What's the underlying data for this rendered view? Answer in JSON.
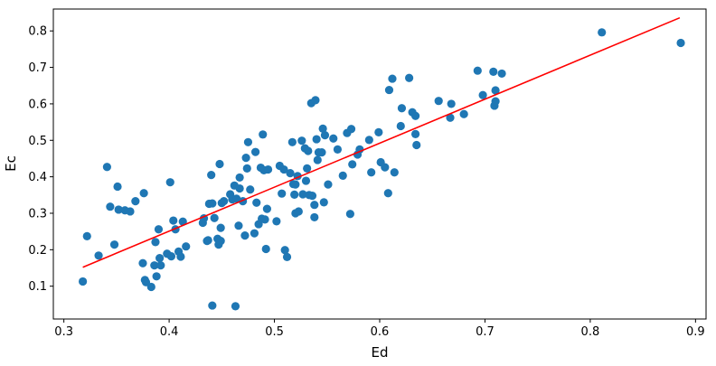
{
  "chart_data": {
    "type": "scatter",
    "title": "",
    "xlabel": "Ed",
    "ylabel": "Ec",
    "xlim": [
      0.29,
      0.91
    ],
    "ylim": [
      0.01,
      0.86
    ],
    "xticks": [
      {
        "value": 0.3,
        "label": "0.3"
      },
      {
        "value": 0.4,
        "label": "0.4"
      },
      {
        "value": 0.5,
        "label": "0.5"
      },
      {
        "value": 0.6,
        "label": "0.6"
      },
      {
        "value": 0.7,
        "label": "0.7"
      },
      {
        "value": 0.8,
        "label": "0.8"
      },
      {
        "value": 0.9,
        "label": "0.9"
      }
    ],
    "yticks": [
      {
        "value": 0.1,
        "label": "0.1"
      },
      {
        "value": 0.2,
        "label": "0.2"
      },
      {
        "value": 0.3,
        "label": "0.3"
      },
      {
        "value": 0.4,
        "label": "0.4"
      },
      {
        "value": 0.5,
        "label": "0.5"
      },
      {
        "value": 0.6,
        "label": "0.6"
      },
      {
        "value": 0.7,
        "label": "0.7"
      },
      {
        "value": 0.8,
        "label": "0.8"
      }
    ],
    "grid": false,
    "colors": {
      "points": "#1f77b4",
      "fit_line": "#ff0000"
    },
    "points": [
      [
        0.318,
        0.113
      ],
      [
        0.322,
        0.237
      ],
      [
        0.333,
        0.184
      ],
      [
        0.341,
        0.427
      ],
      [
        0.344,
        0.318
      ],
      [
        0.348,
        0.214
      ],
      [
        0.351,
        0.373
      ],
      [
        0.352,
        0.31
      ],
      [
        0.358,
        0.308
      ],
      [
        0.363,
        0.305
      ],
      [
        0.368,
        0.333
      ],
      [
        0.375,
        0.163
      ],
      [
        0.376,
        0.355
      ],
      [
        0.377,
        0.117
      ],
      [
        0.378,
        0.111
      ],
      [
        0.383,
        0.098
      ],
      [
        0.386,
        0.157
      ],
      [
        0.387,
        0.221
      ],
      [
        0.388,
        0.127
      ],
      [
        0.39,
        0.256
      ],
      [
        0.391,
        0.177
      ],
      [
        0.392,
        0.157
      ],
      [
        0.398,
        0.189
      ],
      [
        0.401,
        0.385
      ],
      [
        0.402,
        0.182
      ],
      [
        0.404,
        0.28
      ],
      [
        0.406,
        0.256
      ],
      [
        0.409,
        0.195
      ],
      [
        0.411,
        0.181
      ],
      [
        0.413,
        0.277
      ],
      [
        0.416,
        0.209
      ],
      [
        0.432,
        0.274
      ],
      [
        0.433,
        0.286
      ],
      [
        0.436,
        0.224
      ],
      [
        0.437,
        0.226
      ],
      [
        0.438,
        0.326
      ],
      [
        0.44,
        0.405
      ],
      [
        0.441,
        0.047
      ],
      [
        0.441,
        0.327
      ],
      [
        0.443,
        0.287
      ],
      [
        0.446,
        0.23
      ],
      [
        0.447,
        0.214
      ],
      [
        0.448,
        0.435
      ],
      [
        0.449,
        0.224
      ],
      [
        0.449,
        0.26
      ],
      [
        0.45,
        0.328
      ],
      [
        0.452,
        0.333
      ],
      [
        0.458,
        0.352
      ],
      [
        0.46,
        0.338
      ],
      [
        0.462,
        0.376
      ],
      [
        0.463,
        0.045
      ],
      [
        0.464,
        0.34
      ],
      [
        0.466,
        0.266
      ],
      [
        0.467,
        0.368
      ],
      [
        0.467,
        0.398
      ],
      [
        0.47,
        0.333
      ],
      [
        0.472,
        0.239
      ],
      [
        0.473,
        0.452
      ],
      [
        0.474,
        0.423
      ],
      [
        0.475,
        0.495
      ],
      [
        0.477,
        0.365
      ],
      [
        0.481,
        0.245
      ],
      [
        0.482,
        0.468
      ],
      [
        0.483,
        0.329
      ],
      [
        0.485,
        0.27
      ],
      [
        0.487,
        0.425
      ],
      [
        0.488,
        0.285
      ],
      [
        0.489,
        0.516
      ],
      [
        0.49,
        0.418
      ],
      [
        0.491,
        0.283
      ],
      [
        0.492,
        0.202
      ],
      [
        0.493,
        0.312
      ],
      [
        0.494,
        0.42
      ],
      [
        0.502,
        0.278
      ],
      [
        0.505,
        0.43
      ],
      [
        0.507,
        0.354
      ],
      [
        0.509,
        0.42
      ],
      [
        0.51,
        0.199
      ],
      [
        0.512,
        0.18
      ],
      [
        0.515,
        0.41
      ],
      [
        0.517,
        0.495
      ],
      [
        0.518,
        0.38
      ],
      [
        0.519,
        0.351
      ],
      [
        0.52,
        0.379
      ],
      [
        0.52,
        0.3
      ],
      [
        0.522,
        0.402
      ],
      [
        0.523,
        0.305
      ],
      [
        0.526,
        0.499
      ],
      [
        0.527,
        0.352
      ],
      [
        0.529,
        0.478
      ],
      [
        0.53,
        0.389
      ],
      [
        0.531,
        0.423
      ],
      [
        0.532,
        0.471
      ],
      [
        0.533,
        0.35
      ],
      [
        0.535,
        0.602
      ],
      [
        0.536,
        0.348
      ],
      [
        0.538,
        0.323
      ],
      [
        0.538,
        0.289
      ],
      [
        0.539,
        0.61
      ],
      [
        0.54,
        0.503
      ],
      [
        0.541,
        0.446
      ],
      [
        0.542,
        0.467
      ],
      [
        0.545,
        0.467
      ],
      [
        0.546,
        0.532
      ],
      [
        0.547,
        0.33
      ],
      [
        0.548,
        0.514
      ],
      [
        0.551,
        0.379
      ],
      [
        0.556,
        0.505
      ],
      [
        0.56,
        0.475
      ],
      [
        0.565,
        0.403
      ],
      [
        0.569,
        0.52
      ],
      [
        0.572,
        0.298
      ],
      [
        0.573,
        0.531
      ],
      [
        0.574,
        0.434
      ],
      [
        0.579,
        0.461
      ],
      [
        0.581,
        0.475
      ],
      [
        0.59,
        0.501
      ],
      [
        0.592,
        0.412
      ],
      [
        0.599,
        0.522
      ],
      [
        0.601,
        0.44
      ],
      [
        0.605,
        0.426
      ],
      [
        0.608,
        0.355
      ],
      [
        0.609,
        0.638
      ],
      [
        0.612,
        0.669
      ],
      [
        0.614,
        0.412
      ],
      [
        0.62,
        0.539
      ],
      [
        0.621,
        0.588
      ],
      [
        0.628,
        0.671
      ],
      [
        0.631,
        0.577
      ],
      [
        0.634,
        0.517
      ],
      [
        0.634,
        0.567
      ],
      [
        0.635,
        0.487
      ],
      [
        0.656,
        0.608
      ],
      [
        0.667,
        0.562
      ],
      [
        0.668,
        0.6
      ],
      [
        0.68,
        0.572
      ],
      [
        0.693,
        0.691
      ],
      [
        0.698,
        0.624
      ],
      [
        0.708,
        0.688
      ],
      [
        0.709,
        0.595
      ],
      [
        0.71,
        0.637
      ],
      [
        0.71,
        0.607
      ],
      [
        0.716,
        0.683
      ],
      [
        0.811,
        0.796
      ],
      [
        0.886,
        0.767
      ]
    ],
    "fit_line": {
      "x": [
        0.318,
        0.885
      ],
      "y": [
        0.152,
        0.836
      ]
    }
  }
}
